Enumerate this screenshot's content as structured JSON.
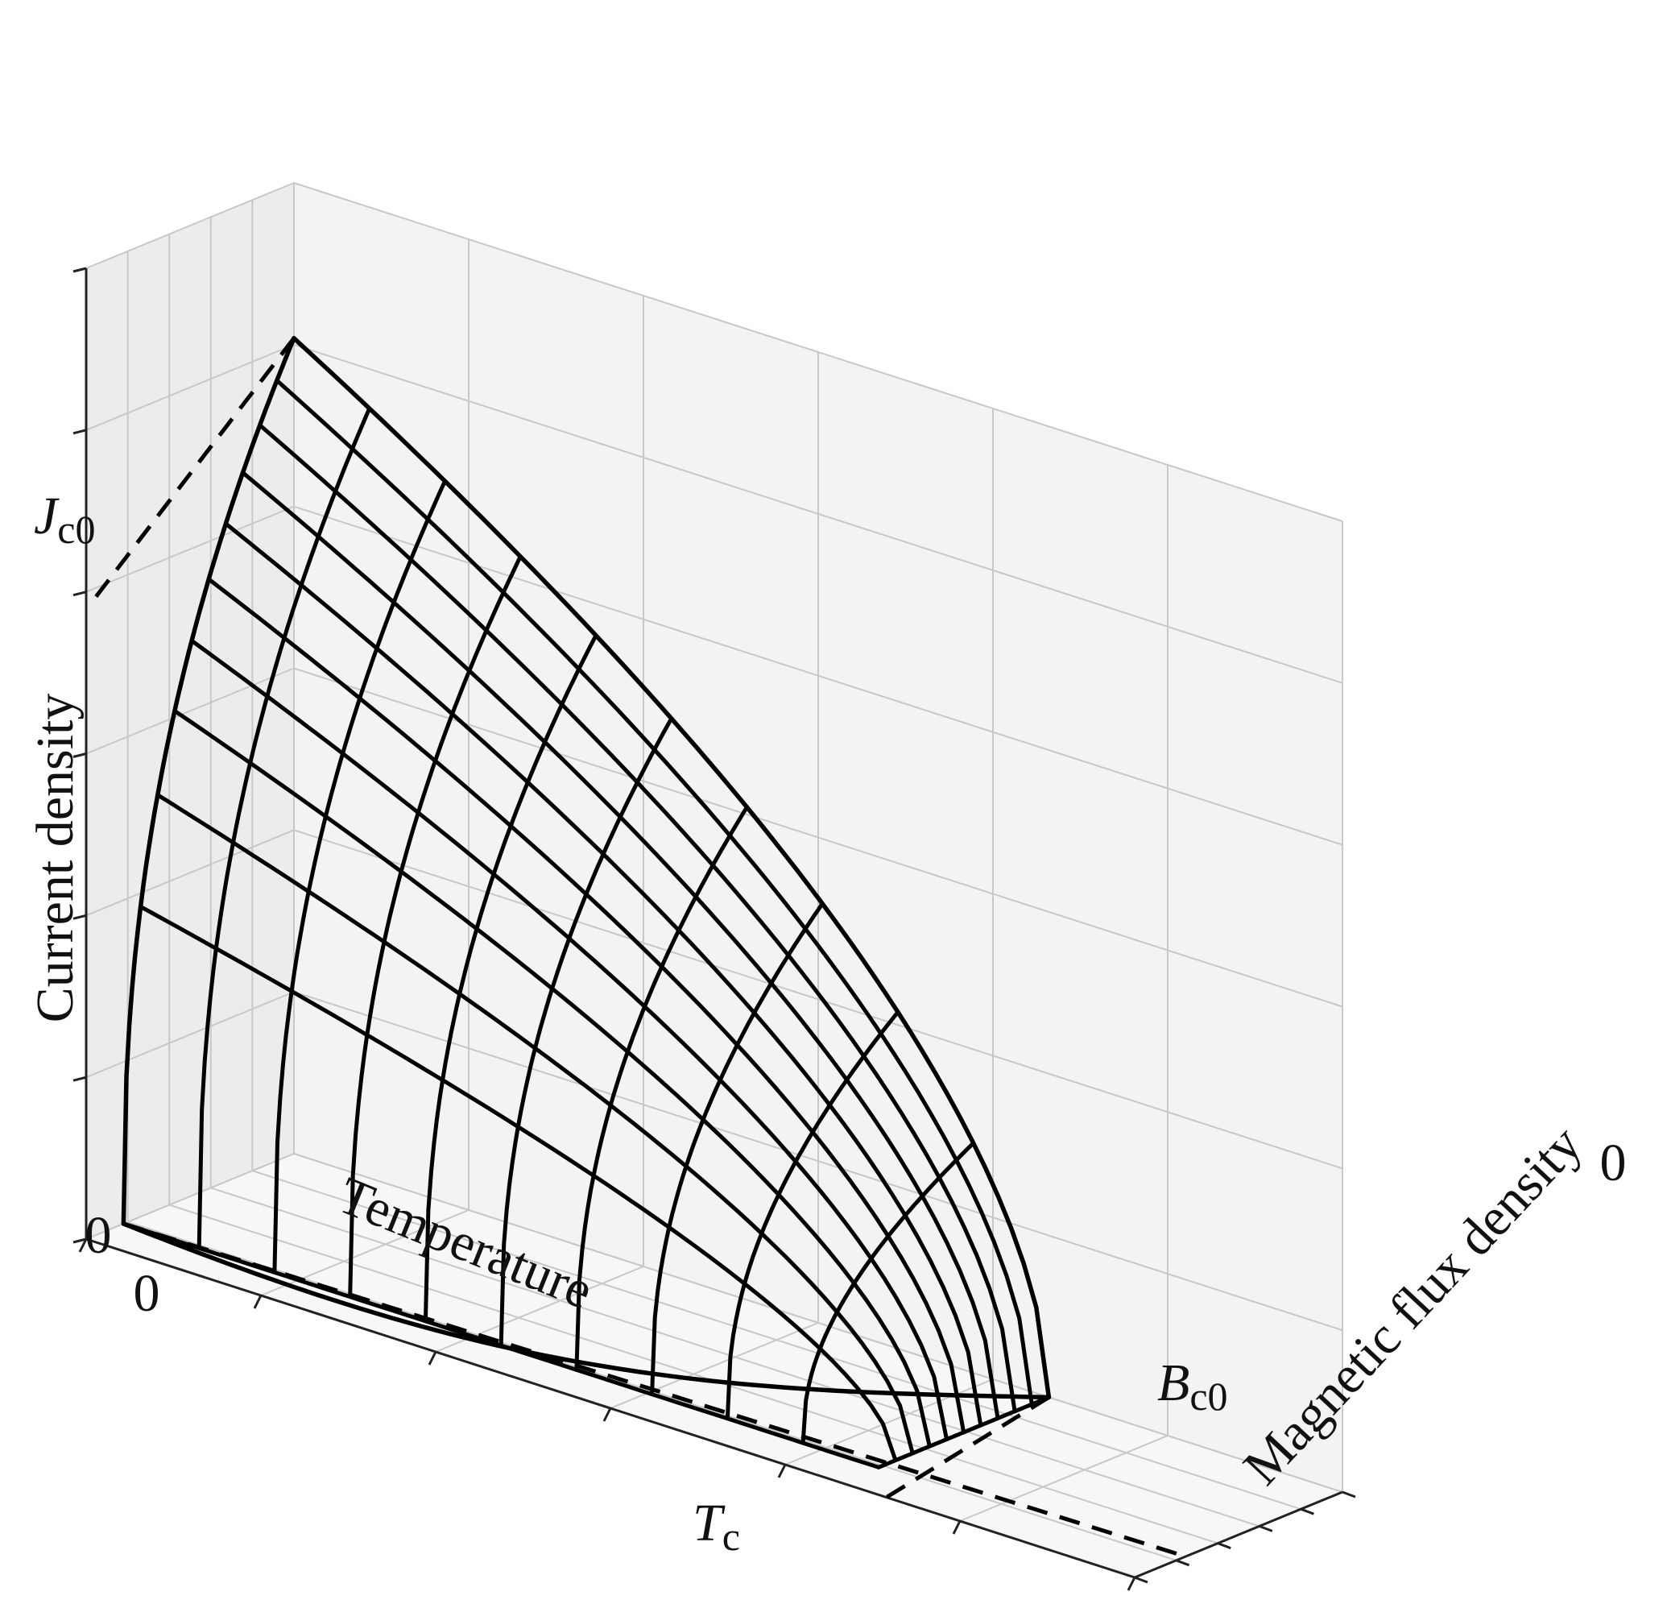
{
  "chart_data": {
    "type": "surface3d",
    "title": "",
    "x_axis": {
      "label": "Temperature",
      "ticks": [
        {
          "value": 0,
          "label": "0"
        }
      ],
      "marker": {
        "symbol": "T",
        "subscript": "c"
      }
    },
    "y_axis": {
      "label": "Magnetic flux density",
      "ticks": [
        {
          "value": 0,
          "label": "0"
        }
      ],
      "marker": {
        "symbol": "B",
        "subscript": "c0"
      }
    },
    "z_axis": {
      "label": "Current density",
      "ticks": [
        {
          "value": 0,
          "label": "0"
        }
      ],
      "marker": {
        "symbol": "J",
        "subscript": "c0"
      }
    },
    "surface": {
      "description_points": [
        {
          "temperature": "0",
          "flux": "0",
          "current": "Jc0"
        },
        {
          "temperature": "Tc",
          "flux": "0",
          "current": "0"
        },
        {
          "temperature": "0",
          "flux": "Bc0",
          "current": "0"
        }
      ],
      "temperature_lines": 11,
      "flux_lines": 11
    },
    "grid": true,
    "line_color": "#000000",
    "pane_color": "#f2f2f2"
  }
}
